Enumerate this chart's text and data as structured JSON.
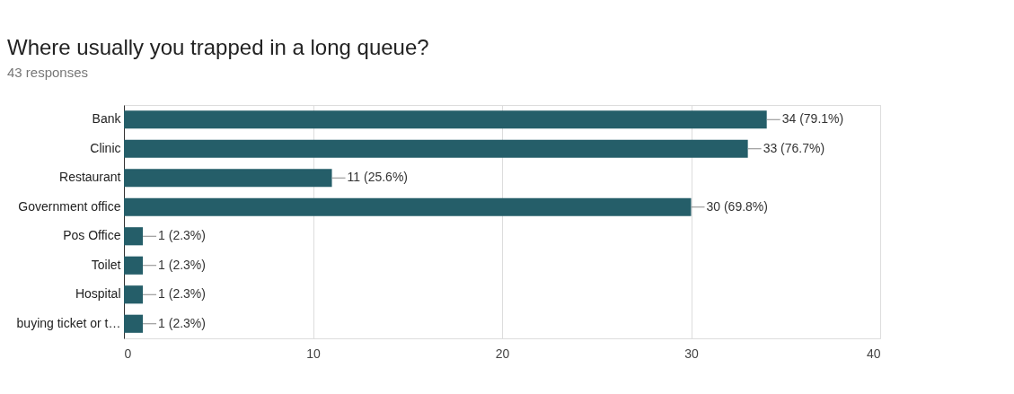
{
  "chart_data": {
    "type": "bar",
    "orientation": "horizontal",
    "title": "Where usually you trapped in a long queue?",
    "subtitle": "43 responses",
    "categories": [
      "Bank",
      "Clinic",
      "Restaurant",
      "Government office",
      "Pos Office",
      "Toilet",
      "Hospital",
      "buying ticket or t…"
    ],
    "values": [
      34,
      33,
      11,
      30,
      1,
      1,
      1,
      1
    ],
    "value_labels": [
      "34 (79.1%)",
      "33 (76.7%)",
      "11 (25.6%)",
      "30 (69.8%)",
      "1 (2.3%)",
      "1 (2.3%)",
      "1 (2.3%)",
      "1 (2.3%)"
    ],
    "color": "#255e69",
    "xlim": [
      0,
      40
    ],
    "xticks": [
      0,
      10,
      20,
      30,
      40
    ],
    "grid": "x"
  }
}
